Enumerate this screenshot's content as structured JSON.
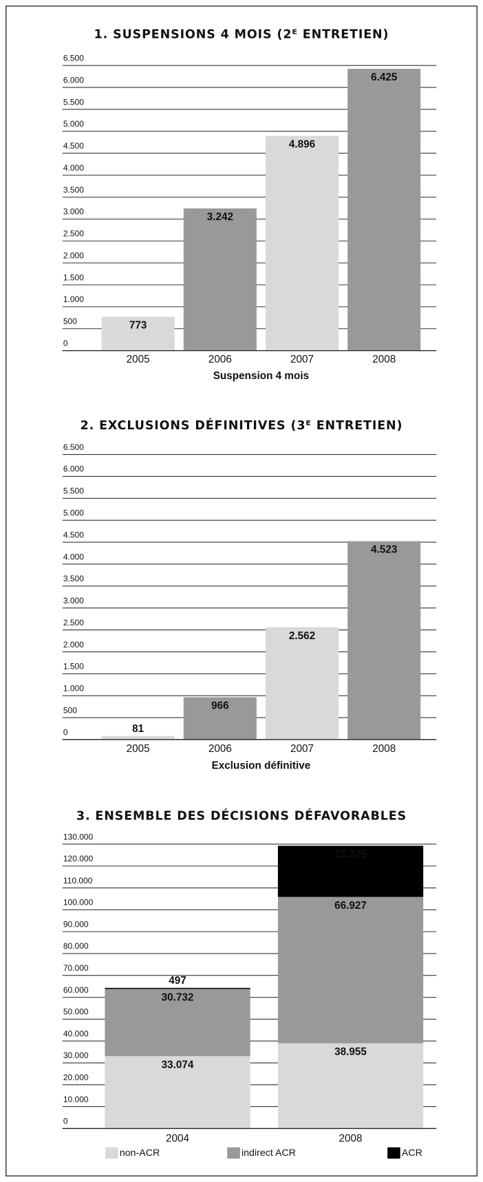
{
  "chart_data": [
    {
      "type": "bar",
      "title": "1. SUSPENSIONS 4 MOIS (2ᴱ ENTRETIEN)",
      "x_label": "Suspension 4 mois",
      "categories": [
        "2005",
        "2006",
        "2007",
        "2008"
      ],
      "values": [
        773,
        3242,
        4896,
        6425
      ],
      "value_labels": [
        "773",
        "3.242",
        "4.896",
        "6.425"
      ],
      "colors": [
        "#d9d9d9",
        "#999999",
        "#d9d9d9",
        "#999999"
      ],
      "ylim": [
        0,
        6500
      ],
      "yticks": [
        0,
        500,
        {
          "value": 1000,
          "label": "1.000"
        },
        {
          "value": 1500,
          "label": "1.500"
        },
        {
          "value": 2000,
          "label": "2.000"
        },
        {
          "value": 2500,
          "label": "2.500"
        },
        {
          "value": 3000,
          "label": "3.000"
        },
        {
          "value": 3500,
          "label": "3.500"
        },
        {
          "value": 4000,
          "label": "4.000"
        },
        {
          "value": 4500,
          "label": "4.500"
        },
        {
          "value": 5000,
          "label": "5.000"
        },
        {
          "value": 5500,
          "label": "5.500"
        },
        {
          "value": 6000,
          "label": "6.000"
        },
        {
          "value": 6500,
          "label": "6.500"
        }
      ],
      "grid": true
    },
    {
      "type": "bar",
      "title": "2. EXCLUSIONS DÉFINITIVES (3ᴱ ENTRETIEN)",
      "x_label": "Exclusion définitive",
      "categories": [
        "2005",
        "2006",
        "2007",
        "2008"
      ],
      "values": [
        81,
        966,
        2562,
        4523
      ],
      "value_labels": [
        "81",
        "966",
        "2.562",
        "4.523"
      ],
      "colors": [
        "#d9d9d9",
        "#999999",
        "#d9d9d9",
        "#999999"
      ],
      "ylim": [
        0,
        6500
      ],
      "yticks": [
        0,
        500,
        {
          "value": 1000,
          "label": "1.000"
        },
        {
          "value": 1500,
          "label": "1.500"
        },
        {
          "value": 2000,
          "label": "2.000"
        },
        {
          "value": 2500,
          "label": "2.500"
        },
        {
          "value": 3000,
          "label": "3.000"
        },
        {
          "value": 3500,
          "label": "3.500"
        },
        {
          "value": 4000,
          "label": "4.000"
        },
        {
          "value": 4500,
          "label": "4.500"
        },
        {
          "value": 5000,
          "label": "5.000"
        },
        {
          "value": 5500,
          "label": "5.500"
        },
        {
          "value": 6000,
          "label": "6.000"
        },
        {
          "value": 6500,
          "label": "6.500"
        }
      ],
      "grid": true
    },
    {
      "type": "stacked_bar",
      "title": "3. ENSEMBLE DES DÉCISIONS DÉFAVORABLES",
      "categories": [
        "2004",
        "2008"
      ],
      "series": [
        {
          "name": "non-ACR",
          "color": "#d9d9d9",
          "values": [
            33074,
            38955
          ],
          "value_labels": [
            "33.074",
            "38.955"
          ]
        },
        {
          "name": "indirect ACR",
          "color": "#999999",
          "values": [
            30732,
            66927
          ],
          "value_labels": [
            "30.732",
            "66.927"
          ]
        },
        {
          "name": "ACR",
          "color": "#000000",
          "values": [
            497,
            23375
          ],
          "value_labels": [
            "497",
            "23.375"
          ]
        }
      ],
      "ylim": [
        0,
        130000
      ],
      "yticks": [
        0,
        {
          "value": 10000,
          "label": "10.000"
        },
        {
          "value": 20000,
          "label": "20.000"
        },
        {
          "value": 30000,
          "label": "30.000"
        },
        {
          "value": 40000,
          "label": "40.000"
        },
        {
          "value": 50000,
          "label": "50.000"
        },
        {
          "value": 60000,
          "label": "60.000"
        },
        {
          "value": 70000,
          "label": "70.000"
        },
        {
          "value": 80000,
          "label": "80.000"
        },
        {
          "value": 90000,
          "label": "90.000"
        },
        {
          "value": 100000,
          "label": "100.000"
        },
        {
          "value": 110000,
          "label": "110.000"
        },
        {
          "value": 120000,
          "label": "120.000"
        },
        {
          "value": 130000,
          "label": "130.000"
        }
      ],
      "grid": true,
      "legend": "bottom"
    }
  ]
}
